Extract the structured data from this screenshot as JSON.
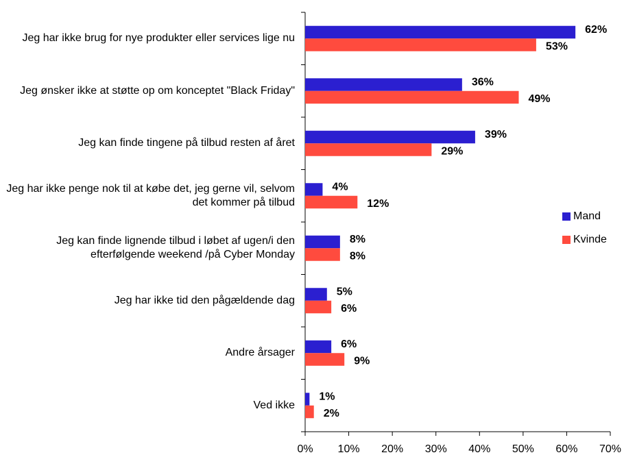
{
  "chart_data": {
    "type": "bar",
    "orientation": "horizontal",
    "categories": [
      "Jeg har ikke brug for nye produkter eller services lige nu",
      "Jeg ønsker ikke at støtte op om konceptet \"Black Friday\"",
      "Jeg kan finde tingene på tilbud resten af året",
      "Jeg har ikke penge nok til at købe det, jeg gerne vil, selvom det kommer på tilbud",
      "Jeg kan finde lignende tilbud i løbet af ugen/i den efterfølgende weekend /på Cyber Monday",
      "Jeg har ikke tid den pågældende dag",
      "Andre årsager",
      "Ved ikke"
    ],
    "series": [
      {
        "name": "Mand",
        "color": "#2b1fd0",
        "values": [
          62,
          36,
          39,
          4,
          8,
          5,
          6,
          1
        ],
        "value_labels": [
          "62%",
          "36%",
          "39%",
          "4%",
          "8%",
          "5%",
          "6%",
          "1%"
        ]
      },
      {
        "name": "Kvinde",
        "color": "#ff4b3e",
        "values": [
          53,
          49,
          29,
          12,
          8,
          6,
          9,
          2
        ],
        "value_labels": [
          "53%",
          "49%",
          "29%",
          "12%",
          "8%",
          "6%",
          "9%",
          "2%"
        ]
      }
    ],
    "xlim": [
      0,
      70
    ],
    "xticks": [
      {
        "value": 0,
        "label": "0%"
      },
      {
        "value": 10,
        "label": "10%"
      },
      {
        "value": 20,
        "label": "20%"
      },
      {
        "value": 30,
        "label": "30%"
      },
      {
        "value": 40,
        "label": "40%"
      },
      {
        "value": 50,
        "label": "50%"
      },
      {
        "value": 60,
        "label": "60%"
      },
      {
        "value": 70,
        "label": "70%"
      }
    ],
    "legend": "right"
  }
}
